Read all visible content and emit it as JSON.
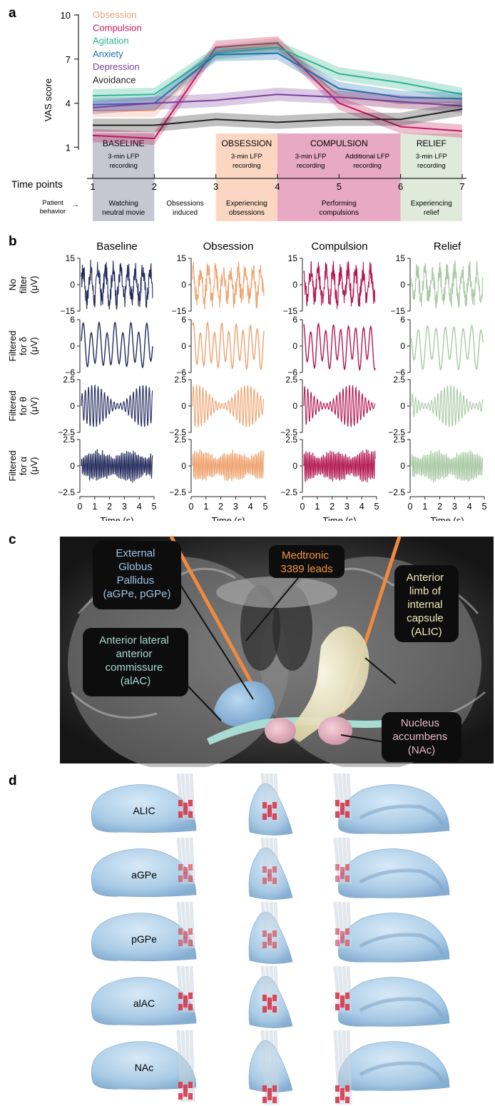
{
  "panels": {
    "a": "a",
    "b": "b",
    "c": "c",
    "d": "d"
  },
  "chart_data": [
    {
      "type": "line",
      "ylabel": "VAS score",
      "x": [
        1,
        2,
        3,
        4,
        5,
        6,
        7
      ],
      "xlabel": "Time points",
      "ylim": [
        0,
        10
      ],
      "yticks": [
        "10",
        "7",
        "4",
        "1"
      ],
      "xticks": [
        "1",
        "2",
        "3",
        "4",
        "5",
        "6",
        "7"
      ],
      "series": [
        {
          "name": "Obsession",
          "color": "#f0a27a",
          "values": [
            3.5,
            3.5,
            7.5,
            8.0,
            4.5,
            4.0,
            4.1
          ]
        },
        {
          "name": "Compulsion",
          "color": "#c2185b",
          "values": [
            1.8,
            1.6,
            7.8,
            8.1,
            4.0,
            2.4,
            2.1
          ]
        },
        {
          "name": "Agitation",
          "color": "#2bb58e",
          "values": [
            4.5,
            4.6,
            7.4,
            7.8,
            6.0,
            5.4,
            4.6
          ]
        },
        {
          "name": "Anxiety",
          "color": "#1f6fb2",
          "values": [
            3.9,
            4.0,
            7.3,
            7.4,
            5.0,
            4.4,
            4.3
          ]
        },
        {
          "name": "Depression",
          "color": "#7b3f9e",
          "values": [
            3.7,
            4.0,
            4.2,
            4.6,
            4.4,
            4.1,
            3.8
          ]
        },
        {
          "name": "Avoidance",
          "color": "#222222",
          "values": [
            2.5,
            2.5,
            2.9,
            2.7,
            2.9,
            2.9,
            3.6
          ]
        }
      ],
      "phases": [
        {
          "title": "BASELINE",
          "sub": "3-min LFP recording",
          "from": 1,
          "to": 2,
          "color": "#c7c7d2"
        },
        {
          "title": "OBSESSION",
          "sub": "3-min LFP recording",
          "from": 3,
          "to": 4,
          "color": "#fbd7c3"
        },
        {
          "title": "COMPULSION",
          "sub": "3-min LFP recording",
          "sub2": "Additional LFP recording",
          "from": 4,
          "to": 6,
          "color": "#e7a9c4"
        },
        {
          "title": "RELIEF",
          "sub": "3-min LFP recording",
          "from": 6,
          "to": 7,
          "color": "#dfeadb"
        }
      ],
      "behavior_label": "Patient behavior",
      "behaviors": [
        "Watching neutral movie",
        "Obsessions induced",
        "Experiencing obsessions",
        "Performing compulsions",
        "Experiencing relief"
      ]
    },
    {
      "type": "line",
      "columns": [
        {
          "title": "Baseline",
          "color": "#232a5c"
        },
        {
          "title": "Obsession",
          "color": "#eea26e"
        },
        {
          "title": "Compulsion",
          "color": "#b3184f"
        },
        {
          "title": "Relief",
          "color": "#a9c9a4"
        }
      ],
      "rows": [
        {
          "label1": "No",
          "label2": "filter",
          "unit": "(μV)",
          "ticks": [
            "15",
            "0",
            "−15"
          ],
          "ylim": [
            -15,
            15
          ]
        },
        {
          "label1": "Filtered",
          "label2": "for δ",
          "unit": "(μV)",
          "ticks": [
            "6",
            "0",
            "−6"
          ],
          "ylim": [
            -6,
            6
          ]
        },
        {
          "label1": "Filtered",
          "label2": "for θ",
          "unit": "(μV)",
          "ticks": [
            "2.5",
            "0",
            "−2.5"
          ],
          "ylim": [
            -2.5,
            2.5
          ]
        },
        {
          "label1": "Filtered",
          "label2": "for α",
          "unit": "(μV)",
          "ticks": [
            "2.5",
            "0",
            "−2.5"
          ],
          "ylim": [
            -2.5,
            2.5
          ]
        }
      ],
      "xticks": [
        "0",
        "1",
        "2",
        "3",
        "4",
        "5"
      ],
      "xlabel": "Time (s)",
      "xlim": [
        0,
        5
      ]
    }
  ],
  "figure_c": {
    "labels": {
      "gpe": [
        "External",
        "Globus",
        "Pallidus",
        "(aGPe, pGPe)"
      ],
      "leads": [
        "Medtronic",
        "3389 leads"
      ],
      "alic": [
        "Anterior",
        "limb of",
        "internal",
        "capsule",
        "(ALIC)"
      ],
      "alac": [
        "Anterior lateral",
        "anterior",
        "commissure",
        "(alAC)"
      ],
      "nac": [
        "Nucleus",
        "accumbens",
        "(NAc)"
      ]
    }
  },
  "figure_d": {
    "rows": [
      "ALIC",
      "aGPe",
      "pGPe",
      "alAC",
      "NAc"
    ]
  }
}
